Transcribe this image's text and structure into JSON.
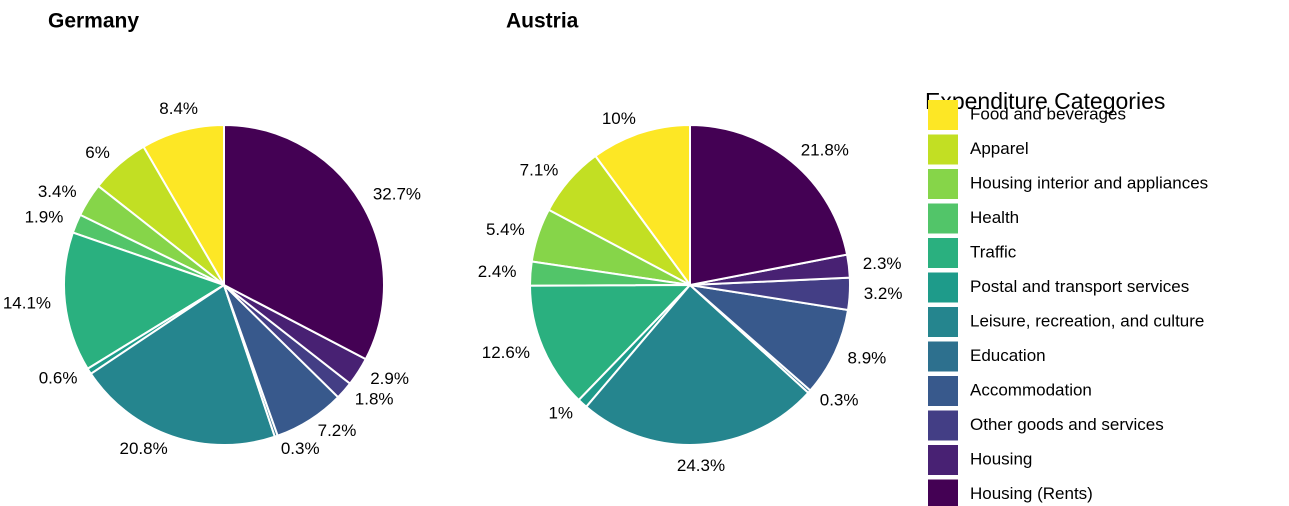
{
  "chart_data": [
    {
      "type": "pie",
      "title": "Germany",
      "legend_title": "Expenditure Categories",
      "categories": [
        "Food and beverages",
        "Apparel",
        "Housing interior and appliances",
        "Health",
        "Traffic",
        "Postal and transport services",
        "Leisure, recreation, and culture",
        "Education",
        "Accommodation",
        "Other goods and services",
        "Housing",
        "Housing (Rents)"
      ],
      "colors": [
        "#FDE725",
        "#C2DF23",
        "#86D549",
        "#52C569",
        "#2AB07F",
        "#1E9B8A",
        "#25858E",
        "#2D708E",
        "#38598C",
        "#433E85",
        "#482173",
        "#440154"
      ],
      "values": [
        8.4,
        6,
        3.4,
        1.9,
        14.1,
        0.6,
        20.8,
        0.3,
        7.2,
        1.8,
        2.9,
        32.7
      ],
      "value_labels": [
        "8.4%",
        "6%",
        "3.4%",
        "1.9%",
        "14.1%",
        "0.6%",
        "20.8%",
        "0.3%",
        "7.2%",
        "1.8%",
        "2.9%",
        "32.7%"
      ]
    },
    {
      "type": "pie",
      "title": "Austria",
      "colors": [
        "#FDE725",
        "#C2DF23",
        "#86D549",
        "#52C569",
        "#2AB07F",
        "#1E9B8A",
        "#25858E",
        "#2D708E",
        "#38598C",
        "#433E85",
        "#482173",
        "#440154"
      ],
      "values": [
        10,
        7.1,
        5.4,
        2.4,
        12.6,
        1,
        24.3,
        0.3,
        8.9,
        3.2,
        2.3,
        21.8
      ],
      "value_labels": [
        "10%",
        "7.1%",
        "5.4%",
        "2.4%",
        "12.6%",
        "1%",
        "24.3%",
        "0.3%",
        "8.9%",
        "3.2%",
        "2.3%",
        "21.8%"
      ]
    }
  ]
}
